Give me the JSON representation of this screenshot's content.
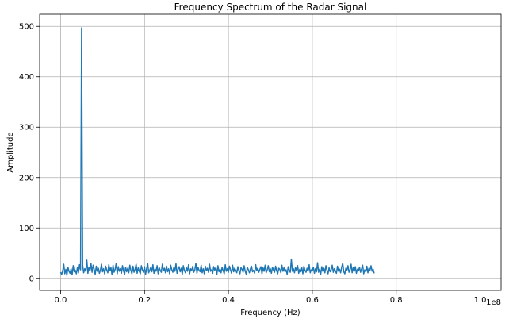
{
  "chart_data": {
    "type": "line",
    "title": "Frequency Spectrum of the Radar Signal",
    "xlabel": "Frequency (Hz)",
    "ylabel": "Amplitude",
    "x_offset_text": "1e8",
    "xlim": [
      -0.05,
      1.05
    ],
    "ylim": [
      -24,
      524
    ],
    "x_ticks": [
      0.0,
      0.2,
      0.4,
      0.6,
      0.8,
      1.0
    ],
    "x_tick_labels": [
      "0.0",
      "0.2",
      "0.4",
      "0.6",
      "0.8",
      "1.0"
    ],
    "y_ticks": [
      0,
      100,
      200,
      300,
      400,
      500
    ],
    "y_tick_labels": [
      "0",
      "100",
      "200",
      "300",
      "400",
      "500"
    ],
    "grid": true,
    "line_color": "#1f77b4",
    "series": [
      {
        "x_start": 0.0,
        "x_step": 0.0025,
        "values": [
          12,
          8,
          15,
          28,
          9,
          18,
          6,
          22,
          14,
          10,
          19,
          7,
          25,
          13,
          16,
          9,
          21,
          11,
          27,
          17,
          497,
          26,
          11,
          19,
          14,
          36,
          10,
          22,
          15,
          29,
          12,
          26,
          18,
          8,
          24,
          14,
          20,
          10,
          17,
          28,
          13,
          19,
          9,
          24,
          16,
          11,
          27,
          15,
          21,
          7,
          26,
          12,
          18,
          30,
          9,
          23,
          14,
          19,
          10,
          25,
          15,
          8,
          22,
          13,
          20,
          11,
          26,
          16,
          9,
          24,
          12,
          18,
          28,
          10,
          21,
          14,
          9,
          25,
          17,
          12,
          23,
          8,
          19,
          30,
          11,
          16,
          22,
          13,
          27,
          10,
          18,
          14,
          25,
          9,
          21,
          16,
          12,
          28,
          15,
          20,
          11,
          24,
          13,
          19,
          9,
          26,
          17,
          12,
          22,
          14,
          29,
          10,
          18,
          23,
          13,
          20,
          8,
          25,
          16,
          11,
          21,
          14,
          27,
          9,
          19,
          15,
          24,
          12,
          17,
          30,
          10,
          22,
          16,
          13,
          26,
          11,
          19,
          9,
          24,
          15,
          20,
          12,
          28,
          14,
          17,
          10,
          23,
          16,
          21,
          8,
          25,
          13,
          18,
          11,
          22,
          15,
          9,
          27,
          14,
          19,
          12,
          24,
          17,
          10,
          26,
          13,
          20,
          16,
          11,
          23,
          15,
          9,
          21,
          18,
          12,
          25,
          14,
          8,
          22,
          17,
          11,
          19,
          24,
          13,
          16,
          10,
          27,
          15,
          20,
          12,
          18,
          23,
          9,
          21,
          14,
          26,
          11,
          17,
          25,
          13,
          19,
          10,
          22,
          16,
          12,
          24,
          15,
          9,
          20,
          18,
          11,
          26,
          14,
          21,
          13,
          17,
          8,
          23,
          16,
          12,
          38,
          14,
          19,
          11,
          22,
          15,
          25,
          10,
          18,
          13,
          21,
          9,
          24,
          16,
          12,
          20,
          14,
          27,
          11,
          17,
          15,
          22,
          10,
          19,
          13,
          31,
          12,
          18,
          8,
          23,
          14,
          20,
          11,
          25,
          16,
          9,
          21,
          13,
          17,
          26,
          12,
          19,
          15,
          10,
          24,
          14,
          18,
          11,
          22,
          30,
          13,
          9,
          20,
          16,
          25,
          12,
          17,
          28,
          11,
          21,
          14,
          23,
          10,
          18,
          15,
          22,
          12,
          19,
          26,
          9,
          17,
          13,
          24,
          11,
          20,
          16,
          25,
          14,
          18,
          10
        ]
      }
    ]
  }
}
